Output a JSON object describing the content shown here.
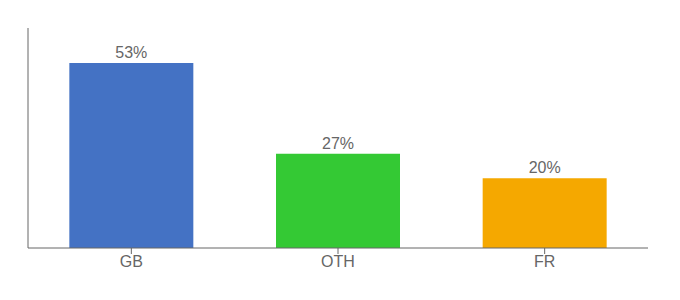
{
  "chart_data": {
    "type": "bar",
    "categories": [
      "GB",
      "OTH",
      "FR"
    ],
    "values": [
      53,
      27,
      20
    ],
    "value_labels": [
      "53%",
      "27%",
      "20%"
    ],
    "colors": [
      "#4472c4",
      "#34c934",
      "#f5a800"
    ],
    "ylim": [
      0,
      63
    ],
    "yticks": [],
    "grid": false,
    "tick_labels": "x"
  }
}
